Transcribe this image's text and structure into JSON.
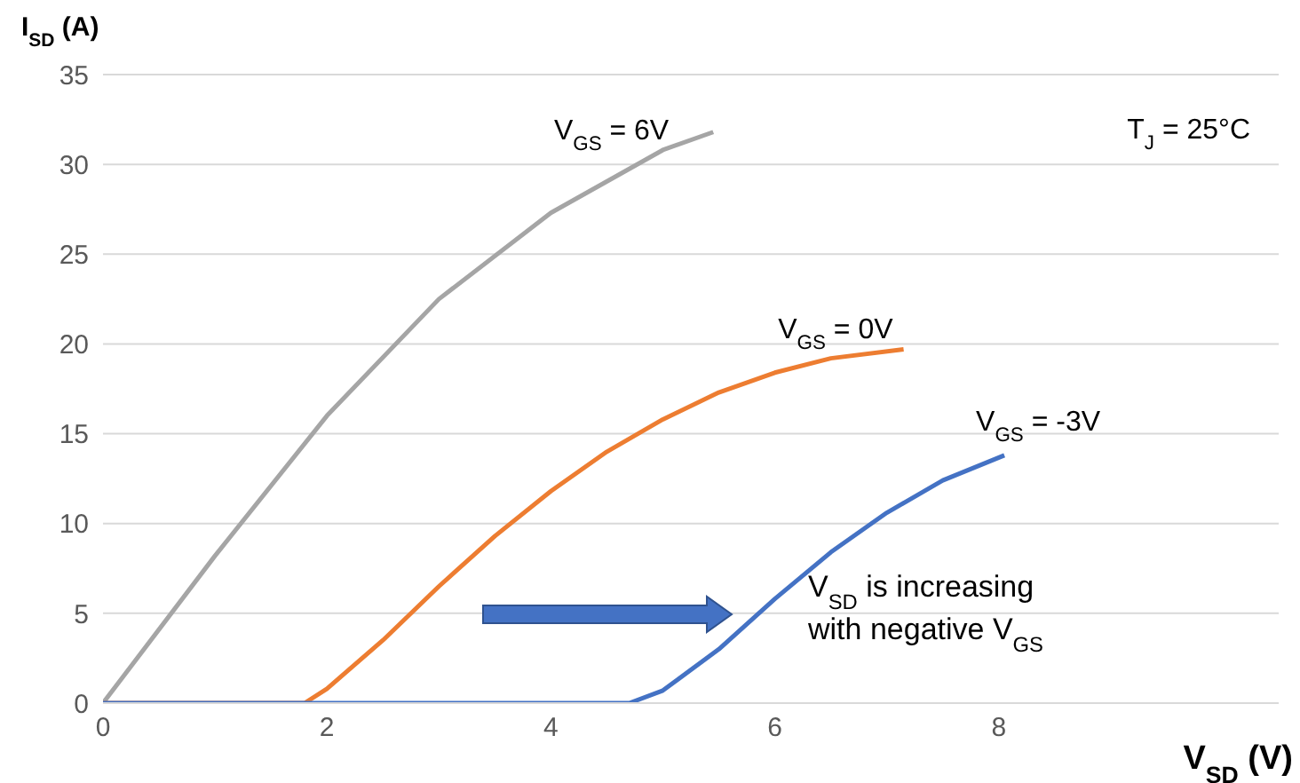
{
  "chart_data": {
    "type": "line",
    "xlabel": "V$_{SD}$ (V)",
    "ylabel": "I$_{SD}$ (A)",
    "xlim": [
      0,
      10.5
    ],
    "xticks": [
      0,
      2,
      4,
      6,
      8
    ],
    "ylim": [
      0,
      35
    ],
    "yticks": [
      0,
      5,
      10,
      15,
      20,
      25,
      30,
      35
    ],
    "grid": "y",
    "series": [
      {
        "name": "V$_{GS}$ = 6V",
        "color": "#a5a5a5",
        "x": [
          0,
          1,
          2,
          3,
          4,
          5,
          5.45
        ],
        "values": [
          0,
          8.2,
          16,
          22.5,
          27.3,
          30.8,
          31.8
        ]
      },
      {
        "name": "V$_{GS}$ = 0V",
        "color": "#ed7d31",
        "x": [
          0,
          1,
          1.8,
          2,
          2.5,
          3,
          3.5,
          4,
          4.5,
          5,
          5.5,
          6,
          6.5,
          7.15
        ],
        "values": [
          0,
          0,
          0,
          0.8,
          3.5,
          6.5,
          9.3,
          11.8,
          14,
          15.8,
          17.3,
          18.4,
          19.2,
          19.7
        ]
      },
      {
        "name": "V$_{GS}$ = -3V",
        "color": "#4472c4",
        "x": [
          0,
          2,
          3,
          4,
          4.7,
          5,
          5.5,
          6,
          6.5,
          7,
          7.5,
          8.05
        ],
        "values": [
          0,
          0,
          0,
          0,
          0,
          0.7,
          3,
          5.8,
          8.4,
          10.6,
          12.4,
          13.8
        ]
      }
    ],
    "annotations": [
      "T$_{J}$ = 25°C",
      "V$_{SD}$ is increasing with negative V$_{GS}$"
    ]
  }
}
